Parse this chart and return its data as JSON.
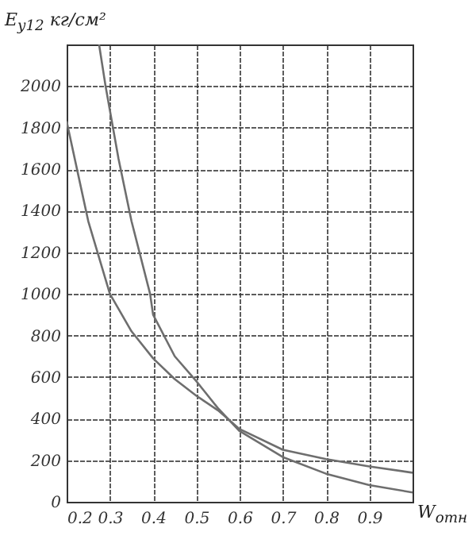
{
  "chart_data": {
    "type": "line",
    "xlabel": "W$_{отн}$",
    "ylabel": "E$_{y12}$ кг/см²",
    "xlim": [
      0.2,
      1.0
    ],
    "xticks": [
      {
        "value": 0.2,
        "label": "0.2"
      },
      {
        "value": 0.3,
        "label": "0.3"
      },
      {
        "value": 0.4,
        "label": "0.4"
      },
      {
        "value": 0.5,
        "label": "0.5"
      },
      {
        "value": 0.6,
        "label": "0.6"
      },
      {
        "value": 0.7,
        "label": "0.7"
      },
      {
        "value": 0.8,
        "label": "0.8"
      },
      {
        "value": 0.9,
        "label": "0.9"
      },
      {
        "value": 1.0,
        "label": null
      }
    ],
    "ylim": [
      0,
      2200
    ],
    "yticks": [
      0,
      200,
      400,
      600,
      800,
      1000,
      1200,
      1400,
      1600,
      1800,
      2000,
      {
        "value": 2200,
        "label": null
      }
    ],
    "grid": true,
    "marker": "none",
    "line_style": "solid",
    "series": [
      {
        "color": "#6e6e6e",
        "x": [
          0.275,
          0.29,
          0.32,
          0.35,
          0.393,
          0.4,
          0.45,
          0.5,
          0.55,
          0.6,
          0.7,
          0.8,
          0.9,
          1.0
        ],
        "values": [
          2200,
          2000,
          1650,
          1350,
          1000,
          900,
          700,
          580,
          450,
          340,
          215,
          135,
          80,
          45
        ]
      },
      {
        "color": "#6e6e6e",
        "x": [
          0.2,
          0.25,
          0.3,
          0.35,
          0.4,
          0.45,
          0.5,
          0.55,
          0.6,
          0.7,
          0.8,
          0.9,
          1.0
        ],
        "values": [
          1830,
          1350,
          1000,
          820,
          690,
          590,
          510,
          440,
          350,
          250,
          205,
          170,
          140
        ]
      }
    ]
  }
}
